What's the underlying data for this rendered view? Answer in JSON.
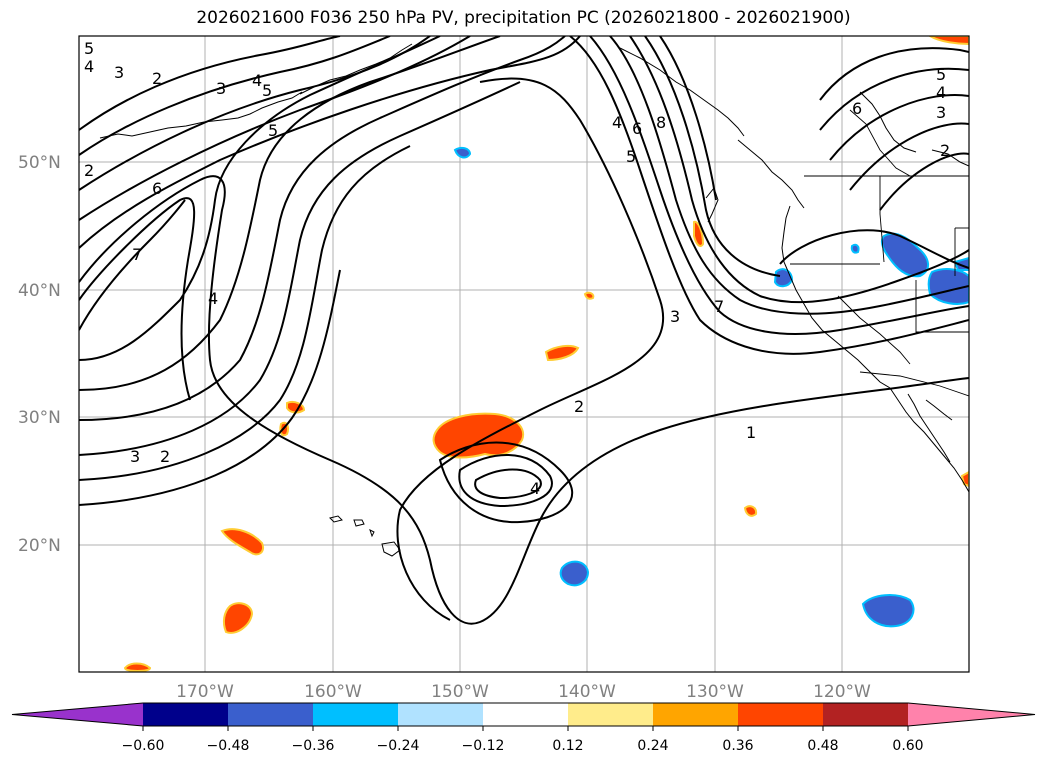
{
  "title": "2026021600 F036 250 hPa PV, precipitation PC (2026021800 - 2026021900)",
  "latitude_labels": [
    "50°N",
    "40°N",
    "30°N",
    "20°N"
  ],
  "longitude_labels": [
    "170°W",
    "160°W",
    "150°W",
    "140°W",
    "130°W",
    "120°W"
  ],
  "contour_labels": [
    "5",
    "4",
    "3",
    "2",
    "3",
    "4",
    "5",
    "5",
    "2",
    "6",
    "7",
    "4",
    "3",
    "2",
    "4",
    "6",
    "8",
    "5",
    "7",
    "3",
    "2",
    "4",
    "1",
    "6",
    "5",
    "4",
    "3",
    "2"
  ],
  "colorbar": {
    "ticks": [
      "−0.60",
      "−0.48",
      "−0.36",
      "−0.24",
      "−0.12",
      "0.12",
      "0.24",
      "0.36",
      "0.48",
      "0.60"
    ],
    "colors": [
      "#9932cc",
      "#00008b",
      "#3a5fcd",
      "#00bfff",
      "#b0e2ff",
      "#ffffff",
      "#ffec8b",
      "#ffa500",
      "#ff4500",
      "#b22222",
      "#ff82ab"
    ]
  }
}
